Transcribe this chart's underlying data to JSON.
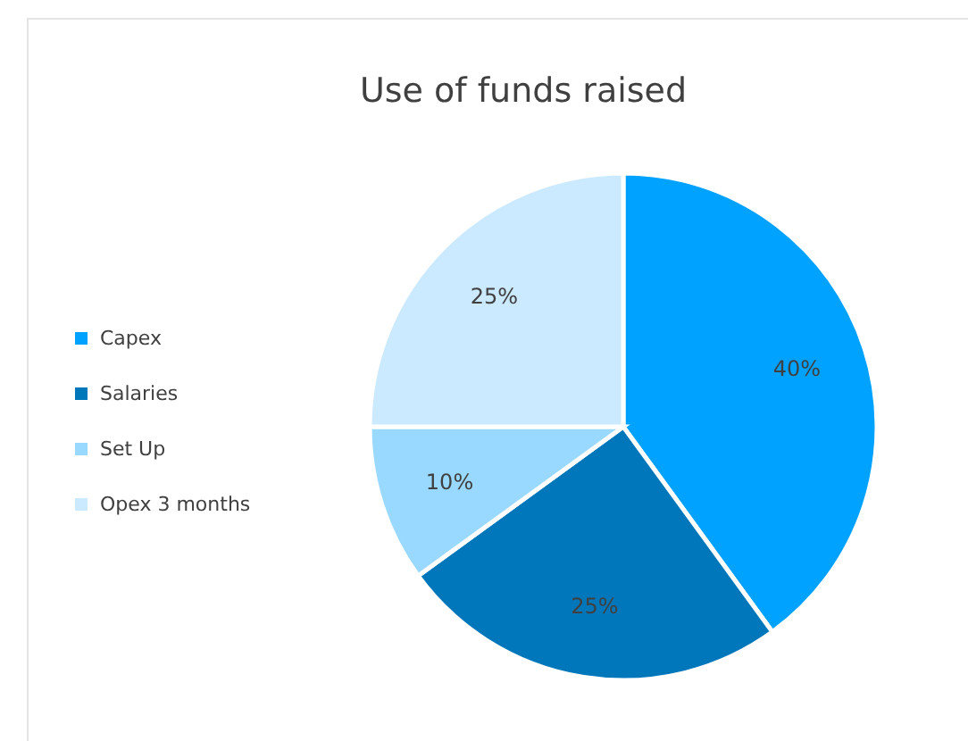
{
  "chart_data": {
    "type": "pie",
    "title": "Use of funds raised",
    "categories": [
      "Capex",
      "Salaries",
      "Set Up",
      "Opex 3 months"
    ],
    "values": [
      40,
      25,
      10,
      25
    ],
    "colors": [
      "#00a2ff",
      "#0077bb",
      "#99d9ff",
      "#cceaff"
    ],
    "value_labels": [
      "40%",
      "25%",
      "10%",
      "25%"
    ],
    "legend": "left"
  }
}
